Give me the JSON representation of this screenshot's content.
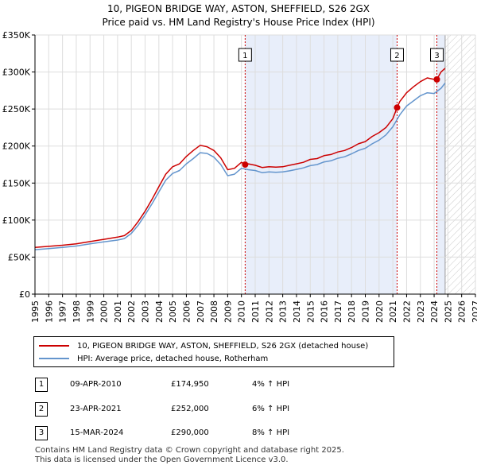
{
  "title_line1": "10, PIGEON BRIDGE WAY, ASTON, SHEFFIELD, S26 2GX",
  "title_line2": "Price paid vs. HM Land Registry's House Price Index (HPI)",
  "colors": {
    "property": "#cc0000",
    "hpi": "#6495cd",
    "shade": "#e8eefa",
    "grid": "#dddddd",
    "vline": "#cc0000"
  },
  "chart_data": {
    "type": "line",
    "title": "Price paid vs. HM Land Registry's House Price Index (HPI)",
    "xlabel": "",
    "ylabel": "",
    "xlim": [
      1995,
      2027
    ],
    "ylim": [
      0,
      350000
    ],
    "x_ticks": [
      "1995",
      "1996",
      "1997",
      "1998",
      "1999",
      "2000",
      "2001",
      "2002",
      "2003",
      "2004",
      "2005",
      "2006",
      "2007",
      "2008",
      "2009",
      "2010",
      "2011",
      "2012",
      "2013",
      "2014",
      "2015",
      "2016",
      "2017",
      "2018",
      "2019",
      "2020",
      "2021",
      "2022",
      "2023",
      "2024",
      "2025",
      "2026",
      "2027"
    ],
    "y_ticks": [
      {
        "value": 0,
        "label": "£0"
      },
      {
        "value": 50000,
        "label": "£50K"
      },
      {
        "value": 100000,
        "label": "£100K"
      },
      {
        "value": 150000,
        "label": "£150K"
      },
      {
        "value": 200000,
        "label": "£200K"
      },
      {
        "value": 250000,
        "label": "£250K"
      },
      {
        "value": 300000,
        "label": "£300K"
      },
      {
        "value": 350000,
        "label": "£350K"
      }
    ],
    "grid": true,
    "shaded_ranges": [
      [
        2010.27,
        2021.31
      ],
      [
        2024.2,
        2024.8
      ]
    ],
    "future_hatch_from": 2024.8,
    "series": [
      {
        "name": "10, PIGEON BRIDGE WAY, ASTON, SHEFFIELD, S26 2GX (detached house)",
        "color": "#cc0000",
        "x": [
          1995,
          1996,
          1997,
          1998,
          1999,
          2000,
          2001,
          2001.5,
          2002,
          2002.5,
          2003,
          2003.5,
          2004,
          2004.5,
          2005,
          2005.5,
          2006,
          2006.5,
          2007,
          2007.5,
          2008,
          2008.5,
          2009,
          2009.5,
          2010,
          2010.27,
          2010.5,
          2011,
          2011.5,
          2012,
          2012.5,
          2013,
          2013.5,
          2014,
          2014.5,
          2015,
          2015.5,
          2016,
          2016.5,
          2017,
          2017.5,
          2018,
          2018.5,
          2019,
          2019.5,
          2020,
          2020.5,
          2021,
          2021.31,
          2021.5,
          2022,
          2022.5,
          2023,
          2023.5,
          2024,
          2024.2,
          2024.5,
          2024.8
        ],
        "values": [
          63000,
          64500,
          66000,
          68000,
          71000,
          74000,
          77000,
          79000,
          86000,
          98000,
          112000,
          128000,
          145000,
          162000,
          172000,
          176000,
          186000,
          194000,
          201000,
          199000,
          194000,
          184000,
          168000,
          170000,
          178000,
          174950,
          176000,
          174000,
          171000,
          172000,
          171500,
          172000,
          174000,
          176000,
          178000,
          182000,
          183000,
          187000,
          188500,
          192000,
          194000,
          198000,
          203000,
          206000,
          213000,
          218000,
          225000,
          237000,
          252000,
          260000,
          272000,
          280000,
          287000,
          292000,
          290000,
          290000,
          300000,
          305000
        ]
      },
      {
        "name": "HPI: Average price, detached house, Rotherham",
        "color": "#6495cd",
        "x": [
          1995,
          1996,
          1997,
          1998,
          1999,
          2000,
          2001,
          2001.5,
          2002,
          2002.5,
          2003,
          2003.5,
          2004,
          2004.5,
          2005,
          2005.5,
          2006,
          2006.5,
          2007,
          2007.5,
          2008,
          2008.5,
          2009,
          2009.5,
          2010,
          2010.5,
          2011,
          2011.5,
          2012,
          2012.5,
          2013,
          2013.5,
          2014,
          2014.5,
          2015,
          2015.5,
          2016,
          2016.5,
          2017,
          2017.5,
          2018,
          2018.5,
          2019,
          2019.5,
          2020,
          2020.5,
          2021,
          2021.5,
          2022,
          2022.5,
          2023,
          2023.5,
          2024,
          2024.5,
          2024.8
        ],
        "values": [
          60000,
          61500,
          63000,
          65000,
          68000,
          70500,
          73000,
          75000,
          82000,
          93000,
          107000,
          122000,
          138000,
          154000,
          163000,
          167000,
          176000,
          183000,
          191000,
          190000,
          185000,
          175000,
          160000,
          162000,
          170000,
          168000,
          167000,
          164000,
          165000,
          164500,
          165000,
          166500,
          168500,
          170500,
          173500,
          175000,
          178500,
          180000,
          183500,
          185500,
          189500,
          194000,
          197000,
          203000,
          208000,
          215000,
          226000,
          242000,
          254000,
          261000,
          268000,
          272000,
          271000,
          278000,
          285000
        ]
      }
    ],
    "sales": [
      {
        "label": "1",
        "x": 2010.27,
        "value": 174950
      },
      {
        "label": "2",
        "x": 2021.31,
        "value": 252000
      },
      {
        "label": "3",
        "x": 2024.2,
        "value": 290000
      }
    ]
  },
  "legend": {
    "property": "10, PIGEON BRIDGE WAY, ASTON, SHEFFIELD, S26 2GX (detached house)",
    "hpi": "HPI: Average price, detached house, Rotherham"
  },
  "transactions": [
    {
      "num": "1",
      "date": "09-APR-2010",
      "price": "£174,950",
      "hpi": "4% ↑ HPI"
    },
    {
      "num": "2",
      "date": "23-APR-2021",
      "price": "£252,000",
      "hpi": "6% ↑ HPI"
    },
    {
      "num": "3",
      "date": "15-MAR-2024",
      "price": "£290,000",
      "hpi": "8% ↑ HPI"
    }
  ],
  "footer": {
    "line1": "Contains HM Land Registry data © Crown copyright and database right 2025.",
    "line2": "This data is licensed under the Open Government Licence v3.0."
  }
}
